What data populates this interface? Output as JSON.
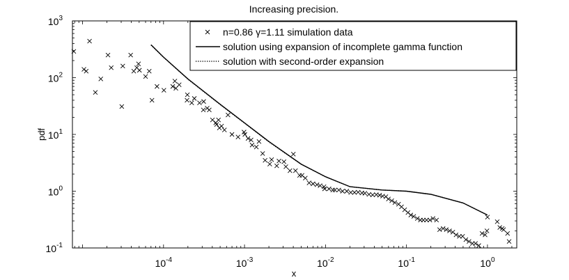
{
  "chart_data": {
    "type": "scatter",
    "title": "Increasing precision.",
    "xlabel": "x",
    "ylabel": "pdf",
    "xscale": "log",
    "yscale": "log",
    "xlim": [
      7.5e-06,
      2.3
    ],
    "ylim": [
      0.1,
      1000
    ],
    "grid": false,
    "legend_position": "top-right",
    "x_ticks": [
      {
        "base": "10",
        "exp": "-4",
        "value": 0.0001
      },
      {
        "base": "10",
        "exp": "-3",
        "value": 0.001
      },
      {
        "base": "10",
        "exp": "-2",
        "value": 0.01
      },
      {
        "base": "10",
        "exp": "-1",
        "value": 0.1
      },
      {
        "base": "10",
        "exp": "0",
        "value": 1
      }
    ],
    "y_ticks": [
      {
        "base": "10",
        "exp": "-1",
        "value": 0.1
      },
      {
        "base": "10",
        "exp": "0",
        "value": 1
      },
      {
        "base": "10",
        "exp": "1",
        "value": 10
      },
      {
        "base": "10",
        "exp": "2",
        "value": 100
      },
      {
        "base": "10",
        "exp": "3",
        "value": 1000
      }
    ],
    "series": [
      {
        "name": "n=0.86 γ=1.11 simulation data",
        "style": "markers-x",
        "x": [
          7.8e-06,
          1.04e-05,
          1.11e-05,
          1.22e-05,
          1.44e-05,
          1.68e-05,
          2.06e-05,
          2.26e-05,
          3.05e-05,
          3.14e-05,
          3.93e-05,
          4.29e-05,
          4.67e-05,
          4.91e-05,
          5.04e-05,
          6e-05,
          6.66e-05,
          7.2e-05,
          8.3e-05,
          0.000101,
          0.00013,
          0.000138,
          0.000142,
          0.000156,
          0.000195,
          0.000197,
          0.000223,
          0.00024,
          0.000278,
          0.00031,
          0.000313,
          0.000346,
          0.000367,
          0.000402,
          0.000441,
          0.000452,
          0.000477,
          0.000489,
          0.000521,
          0.000565,
          0.000625,
          0.0007,
          0.000832,
          0.000986,
          0.00101,
          0.001105,
          0.001205,
          0.00124,
          0.0014,
          0.00151,
          0.001675,
          0.001795,
          0.00205,
          0.00216,
          0.0025,
          0.00266,
          0.00307,
          0.00324,
          0.00364,
          0.00401,
          0.00426,
          0.00479,
          0.00513,
          0.00563,
          0.00627,
          0.00701,
          0.00785,
          0.00857,
          0.00959,
          0.00974,
          0.01105,
          0.0123,
          0.0131,
          0.0146,
          0.0162,
          0.0183,
          0.0205,
          0.0228,
          0.0253,
          0.0282,
          0.0306,
          0.0344,
          0.0382,
          0.0424,
          0.0466,
          0.0507,
          0.0556,
          0.0598,
          0.0658,
          0.0719,
          0.0798,
          0.0868,
          0.0949,
          0.1042,
          0.113,
          0.1228,
          0.1361,
          0.1486,
          0.1614,
          0.1771,
          0.1945,
          0.2124,
          0.2349,
          0.2566,
          0.2834,
          0.3103,
          0.3401,
          0.3732,
          0.4092,
          0.4492,
          0.4932,
          0.5409,
          0.5914,
          0.6512,
          0.7113,
          0.7811,
          0.8569,
          0.934,
          0.985,
          1.0,
          1.32,
          1.42,
          1.52,
          1.58,
          1.77,
          1.85
        ],
        "y": [
          290,
          140,
          130,
          440,
          55,
          95,
          250,
          150,
          31,
          160,
          250,
          130,
          150,
          175,
          135,
          105,
          130,
          40,
          70,
          60,
          70,
          87,
          65,
          75,
          40,
          50,
          36,
          43,
          36,
          27,
          38,
          29,
          27,
          18,
          16,
          15,
          18,
          13,
          14,
          12,
          22,
          10,
          9.0,
          11,
          10,
          8.5,
          8.0,
          6.5,
          6.0,
          7.5,
          4.6,
          3.5,
          3.0,
          3.6,
          2.8,
          3.4,
          3.3,
          2.7,
          2.3,
          4.5,
          2.3,
          1.9,
          1.9,
          1.7,
          1.4,
          1.35,
          1.3,
          1.25,
          1.2,
          1.1,
          1.1,
          1.05,
          1.05,
          1.05,
          1.0,
          1.0,
          0.95,
          0.95,
          0.96,
          0.93,
          0.92,
          0.88,
          0.86,
          0.87,
          0.85,
          0.82,
          0.8,
          0.73,
          0.68,
          0.63,
          0.59,
          0.53,
          0.47,
          0.42,
          0.38,
          0.36,
          0.33,
          0.31,
          0.31,
          0.31,
          0.31,
          0.33,
          0.31,
          0.21,
          0.22,
          0.21,
          0.2,
          0.19,
          0.17,
          0.16,
          0.16,
          0.14,
          0.13,
          0.12,
          0.12,
          0.11,
          0.18,
          0.17,
          0.2,
          0.35,
          0.29,
          0.23,
          0.22,
          0.21,
          0.18,
          0.13
        ]
      },
      {
        "name": "solution using expansion of incomplete gamma function",
        "style": "solid",
        "x": [
          7e-05,
          0.0001,
          0.0002,
          0.0005,
          0.001,
          0.002,
          0.005,
          0.01,
          0.02,
          0.05,
          0.1,
          0.2,
          0.5,
          1.0
        ],
        "y": [
          380,
          230,
          95,
          34,
          16,
          7.5,
          3.0,
          1.8,
          1.2,
          1.05,
          1.0,
          0.88,
          0.62,
          0.38
        ]
      },
      {
        "name": "solution with second-order expansion",
        "style": "dotted",
        "x": [
          7e-05,
          0.0001,
          0.0002,
          0.0005,
          0.001,
          0.002,
          0.005,
          0.01,
          0.02,
          0.05,
          0.1,
          0.2,
          0.5,
          1.0
        ],
        "y": [
          375,
          228,
          94,
          33.5,
          15.8,
          7.4,
          2.98,
          1.79,
          1.2,
          1.05,
          1.0,
          0.88,
          0.62,
          0.38
        ]
      }
    ]
  }
}
